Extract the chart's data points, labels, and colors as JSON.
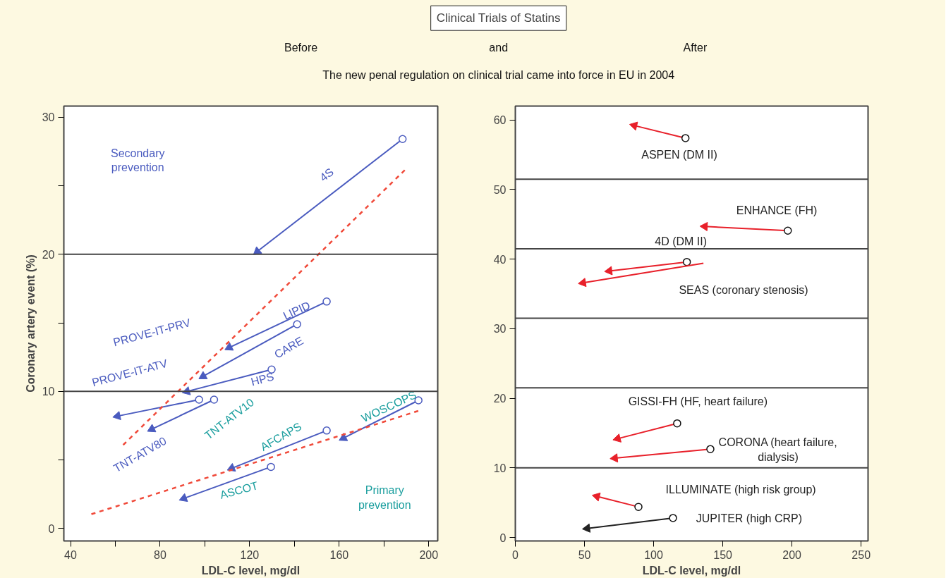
{
  "chart_data": [
    {
      "type": "other",
      "title": "Clinical Trials of Statins",
      "subtitle": "The new penal regulation on clinical trial came into force in EU in 2004",
      "annotations": [
        "Before",
        "and",
        "After"
      ]
    },
    {
      "type": "line",
      "xlabel": "LDL-C level, mg/dl",
      "ylabel": "Coronary artery event (%)",
      "marker": "circle",
      "xlim": [
        37,
        204
      ],
      "ylim": [
        -0.9,
        30.8
      ],
      "xticks": [
        40,
        {
          "value": 60,
          "label": null
        },
        80,
        {
          "value": 100,
          "label": null
        },
        120,
        {
          "value": 140,
          "label": null
        },
        160,
        {
          "value": 180,
          "label": null
        },
        200
      ],
      "yticks": [
        0,
        {
          "value": 5,
          "label": null
        },
        10,
        {
          "value": 15,
          "label": null
        },
        20,
        {
          "value": 25,
          "label": null
        },
        30
      ],
      "ref_lines": [
        {
          "axis": "y",
          "value": 10,
          "color": "#444444"
        },
        {
          "axis": "y",
          "value": 20,
          "color": "#444444"
        }
      ],
      "series": [
        {
          "color": "#4a5bbf",
          "x": [
            188.3,
            123.4
          ],
          "values": [
            28.4,
            20.2
          ]
        },
        {
          "color": "#4a5bbf",
          "x": [
            154.4,
            110.9
          ],
          "values": [
            16.55,
            13.2
          ]
        },
        {
          "color": "#4a5bbf",
          "x": [
            141.2,
            99.2
          ],
          "values": [
            14.9,
            11.1
          ]
        },
        {
          "color": "#4a5bbf",
          "x": [
            129.8,
            92
          ],
          "values": [
            11.6,
            10.0
          ]
        },
        {
          "color": "#4a5bbf",
          "x": [
            97.4,
            61
          ],
          "values": [
            9.4,
            8.2
          ]
        },
        {
          "color": "#4a5bbf",
          "x": [
            104.1,
            76.3
          ],
          "values": [
            9.4,
            7.25
          ]
        },
        {
          "color": "#4a5bbf",
          "x": [
            195.4,
            161.9
          ],
          "values": [
            9.35,
            6.6
          ]
        },
        {
          "color": "#4a5bbf",
          "x": [
            154.4,
            112
          ],
          "values": [
            7.15,
            4.4
          ]
        },
        {
          "color": "#4a5bbf",
          "x": [
            129.5,
            90.6
          ],
          "values": [
            4.5,
            2.2
          ]
        },
        {
          "color": "#f04a3a",
          "x": [
            63.5,
            189.7
          ],
          "values": [
            6.1,
            26.2
          ],
          "marker": "none",
          "line_style": "dashed"
        },
        {
          "color": "#f04a3a",
          "x": [
            49.3,
            195.7
          ],
          "values": [
            1.05,
            8.6
          ],
          "marker": "none",
          "line_style": "dashed"
        }
      ],
      "annotations": [
        "Secondary\nprevention",
        "4S",
        "LIPID",
        "CARE",
        "HPS",
        "PROVE-IT-PRV",
        "PROVE-IT-ATV",
        "TNT-ATV80",
        "TNT-ATV10",
        "AFCAPS",
        "WOSCOPS",
        "ASCOT",
        "Primary\nprevention"
      ]
    },
    {
      "type": "line",
      "xlabel": "LDL-C level, mg/dl",
      "marker": "circle",
      "xlim": [
        0,
        255
      ],
      "ylim": [
        -0.5,
        62
      ],
      "xticks": [
        0,
        50,
        100,
        150,
        200,
        250
      ],
      "yticks": [
        0,
        10,
        20,
        30,
        40,
        50,
        60
      ],
      "ref_lines": [
        {
          "axis": "y",
          "value": 10,
          "color": "#444444"
        },
        {
          "axis": "y",
          "value": 21.5,
          "color": "#444444"
        },
        {
          "axis": "y",
          "value": 31.5,
          "color": "#444444"
        },
        {
          "axis": "y",
          "value": 41.5,
          "color": "#444444"
        },
        {
          "axis": "y",
          "value": 51.5,
          "color": "#444444"
        }
      ],
      "series": [
        {
          "color": "#e8202a",
          "x": [
            123,
            86
          ],
          "values": [
            57.4,
            59.2
          ]
        },
        {
          "color": "#e8202a",
          "x": [
            197,
            137
          ],
          "values": [
            44.1,
            44.7
          ]
        },
        {
          "color": "#e8202a",
          "x": [
            124,
            68
          ],
          "values": [
            39.6,
            38.3
          ]
        },
        {
          "color": "#e8202a",
          "x": [
            136,
            49
          ],
          "values": [
            39.4,
            36.6
          ],
          "marker": "triangle"
        },
        {
          "color": "#e8202a",
          "x": [
            117,
            74
          ],
          "values": [
            16.4,
            14.2
          ]
        },
        {
          "color": "#e8202a",
          "x": [
            141,
            72
          ],
          "values": [
            12.7,
            11.4
          ]
        },
        {
          "color": "#e8202a",
          "x": [
            89,
            59
          ],
          "values": [
            4.4,
            5.9
          ]
        },
        {
          "color": "#222222",
          "x": [
            114,
            52
          ],
          "values": [
            2.8,
            1.3
          ]
        }
      ],
      "annotations": [
        "ASPEN (DM II)",
        "ENHANCE (FH)",
        "4D (DM II)",
        "SEAS (coronary stenosis)",
        "GISSI-FH (HF, heart failure)",
        "CORONA (heart failure,\ndialysis)",
        "ILLUMINATE (high risk group)",
        "JUPITER (high CRP)"
      ]
    }
  ]
}
